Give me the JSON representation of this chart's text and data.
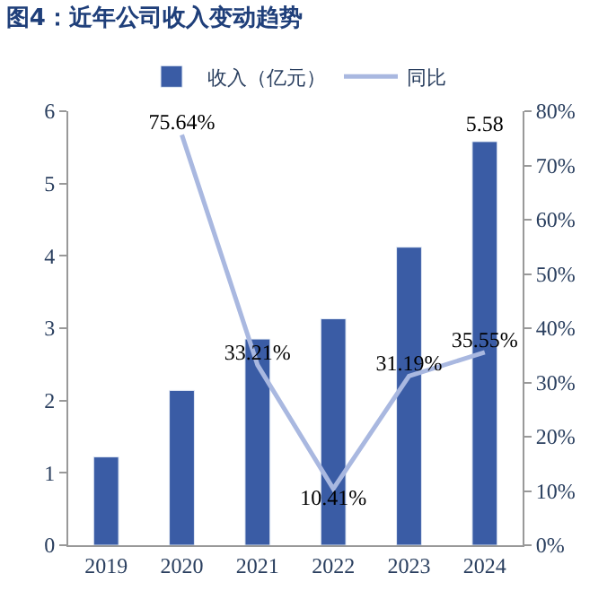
{
  "chart_data": {
    "type": "bar",
    "title": "图4：近年公司收入变动趋势",
    "categories": [
      "2019",
      "2020",
      "2021",
      "2022",
      "2023",
      "2024"
    ],
    "series": [
      {
        "name": "收入（亿元）",
        "color": "#3a5ca5",
        "values": [
          1.22,
          2.14,
          2.85,
          3.13,
          4.12,
          5.58
        ],
        "value_labels": [
          null,
          null,
          null,
          null,
          null,
          "5.58"
        ]
      },
      {
        "name": "同比",
        "type": "line",
        "axis": "y2",
        "color": "#a9b8e0",
        "marker": "none",
        "values": [
          null,
          75.64,
          33.21,
          10.41,
          31.19,
          35.55
        ],
        "value_labels": [
          null,
          "75.64%",
          "33.21%",
          "10.41%",
          "31.19%",
          "35.55%"
        ]
      }
    ],
    "ylim": [
      0,
      6
    ],
    "yticks": [
      0,
      1,
      2,
      3,
      4,
      5,
      6
    ],
    "y2lim": [
      0,
      80
    ],
    "y2ticks": [
      {
        "value": 0,
        "label": "0%"
      },
      {
        "value": 10,
        "label": "10%"
      },
      {
        "value": 20,
        "label": "20%"
      },
      {
        "value": 30,
        "label": "30%"
      },
      {
        "value": 40,
        "label": "40%"
      },
      {
        "value": 50,
        "label": "50%"
      },
      {
        "value": 60,
        "label": "60%"
      },
      {
        "value": 70,
        "label": "70%"
      },
      {
        "value": 80,
        "label": "80%"
      }
    ],
    "legend": "top"
  }
}
